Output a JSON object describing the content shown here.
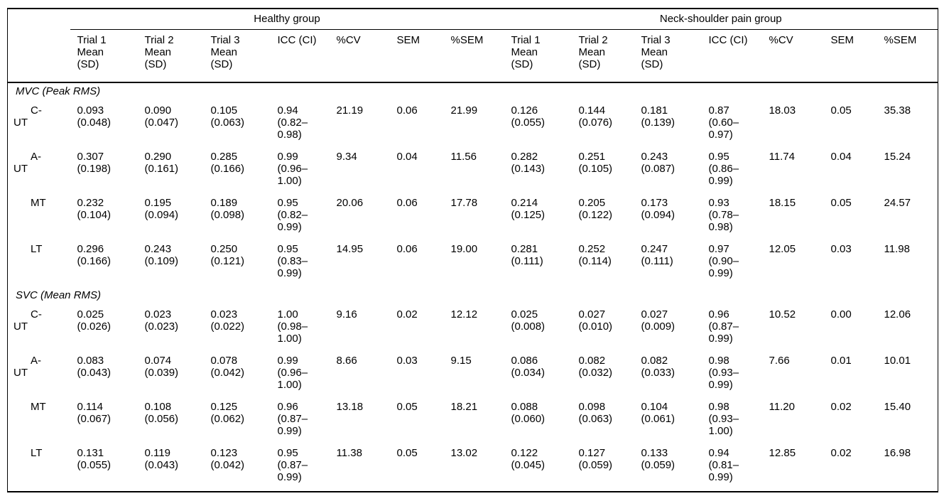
{
  "page": {
    "background_color": "#ffffff",
    "text_color": "#000000",
    "rule_color": "#000000"
  },
  "table": {
    "group_headers": [
      {
        "label": "Healthy group"
      },
      {
        "label": "Neck-shoulder pain group"
      }
    ],
    "column_headers": [
      [
        "Trial 1",
        "Mean",
        "(SD)"
      ],
      [
        "Trial 2",
        "Mean",
        "(SD)"
      ],
      [
        "Trial 3",
        "Mean",
        "(SD)"
      ],
      [
        "ICC (CI)"
      ],
      [
        "%CV"
      ],
      [
        "SEM"
      ],
      [
        "%SEM"
      ]
    ],
    "sections": [
      {
        "title": "MVC (Peak RMS)",
        "rows": [
          {
            "label_lines": [
              "C-",
              "UT"
            ],
            "healthy": {
              "trial1": [
                "0.093",
                "(0.048)"
              ],
              "trial2": [
                "0.090",
                "(0.047)"
              ],
              "trial3": [
                "0.105",
                "(0.063)"
              ],
              "icc": [
                "0.94",
                "(0.82–",
                "0.98)"
              ],
              "cv": "21.19",
              "sem": "0.06",
              "psem": "21.99"
            },
            "pain": {
              "trial1": [
                "0.126",
                "(0.055)"
              ],
              "trial2": [
                "0.144",
                "(0.076)"
              ],
              "trial3": [
                "0.181",
                "(0.139)"
              ],
              "icc": [
                "0.87",
                "(0.60–",
                "0.97)"
              ],
              "cv": "18.03",
              "sem": "0.05",
              "psem": "35.38"
            }
          },
          {
            "label_lines": [
              "A-",
              "UT"
            ],
            "healthy": {
              "trial1": [
                "0.307",
                "(0.198)"
              ],
              "trial2": [
                "0.290",
                "(0.161)"
              ],
              "trial3": [
                "0.285",
                "(0.166)"
              ],
              "icc": [
                "0.99",
                "(0.96–",
                "1.00)"
              ],
              "cv": "9.34",
              "sem": "0.04",
              "psem": "11.56"
            },
            "pain": {
              "trial1": [
                "0.282",
                "(0.143)"
              ],
              "trial2": [
                "0.251",
                "(0.105)"
              ],
              "trial3": [
                "0.243",
                "(0.087)"
              ],
              "icc": [
                "0.95",
                "(0.86–",
                "0.99)"
              ],
              "cv": "11.74",
              "sem": "0.04",
              "psem": "15.24"
            }
          },
          {
            "label_lines": [
              "MT"
            ],
            "healthy": {
              "trial1": [
                "0.232",
                "(0.104)"
              ],
              "trial2": [
                "0.195",
                "(0.094)"
              ],
              "trial3": [
                "0.189",
                "(0.098)"
              ],
              "icc": [
                "0.95",
                "(0.82–",
                "0.99)"
              ],
              "cv": "20.06",
              "sem": "0.06",
              "psem": "17.78"
            },
            "pain": {
              "trial1": [
                "0.214",
                "(0.125)"
              ],
              "trial2": [
                "0.205",
                "(0.122)"
              ],
              "trial3": [
                "0.173",
                "(0.094)"
              ],
              "icc": [
                "0.93",
                "(0.78–",
                "0.98)"
              ],
              "cv": "18.15",
              "sem": "0.05",
              "psem": "24.57"
            }
          },
          {
            "label_lines": [
              "LT"
            ],
            "healthy": {
              "trial1": [
                "0.296",
                "(0.166)"
              ],
              "trial2": [
                "0.243",
                "(0.109)"
              ],
              "trial3": [
                "0.250",
                "(0.121)"
              ],
              "icc": [
                "0.95",
                "(0.83–",
                "0.99)"
              ],
              "cv": "14.95",
              "sem": "0.06",
              "psem": "19.00"
            },
            "pain": {
              "trial1": [
                "0.281",
                "(0.111)"
              ],
              "trial2": [
                "0.252",
                "(0.114)"
              ],
              "trial3": [
                "0.247",
                "(0.111)"
              ],
              "icc": [
                "0.97",
                "(0.90–",
                "0.99)"
              ],
              "cv": "12.05",
              "sem": "0.03",
              "psem": "11.98"
            }
          }
        ]
      },
      {
        "title": "SVC (Mean RMS)",
        "rows": [
          {
            "label_lines": [
              "C-",
              "UT"
            ],
            "healthy": {
              "trial1": [
                "0.025",
                "(0.026)"
              ],
              "trial2": [
                "0.023",
                "(0.023)"
              ],
              "trial3": [
                "0.023",
                "(0.022)"
              ],
              "icc": [
                "1.00",
                "(0.98–",
                "1.00)"
              ],
              "cv": "9.16",
              "sem": "0.02",
              "psem": "12.12"
            },
            "pain": {
              "trial1": [
                "0.025",
                "(0.008)"
              ],
              "trial2": [
                "0.027",
                "(0.010)"
              ],
              "trial3": [
                "0.027",
                "(0.009)"
              ],
              "icc": [
                "0.96",
                "(0.87–",
                "0.99)"
              ],
              "cv": "10.52",
              "sem": "0.00",
              "psem": "12.06"
            }
          },
          {
            "label_lines": [
              "A-",
              "UT"
            ],
            "healthy": {
              "trial1": [
                "0.083",
                "(0.043)"
              ],
              "trial2": [
                "0.074",
                "(0.039)"
              ],
              "trial3": [
                "0.078",
                "(0.042)"
              ],
              "icc": [
                "0.99",
                "(0.96–",
                "1.00)"
              ],
              "cv": "8.66",
              "sem": "0.03",
              "psem": "9.15"
            },
            "pain": {
              "trial1": [
                "0.086",
                "(0.034)"
              ],
              "trial2": [
                "0.082",
                "(0.032)"
              ],
              "trial3": [
                "0.082",
                "(0.033)"
              ],
              "icc": [
                "0.98",
                "(0.93–",
                "0.99)"
              ],
              "cv": "7.66",
              "sem": "0.01",
              "psem": "10.01"
            }
          },
          {
            "label_lines": [
              "MT"
            ],
            "healthy": {
              "trial1": [
                "0.114",
                "(0.067)"
              ],
              "trial2": [
                "0.108",
                "(0.056)"
              ],
              "trial3": [
                "0.125",
                "(0.062)"
              ],
              "icc": [
                "0.96",
                "(0.87–",
                "0.99)"
              ],
              "cv": "13.18",
              "sem": "0.05",
              "psem": "18.21"
            },
            "pain": {
              "trial1": [
                "0.088",
                "(0.060)"
              ],
              "trial2": [
                "0.098",
                "(0.063)"
              ],
              "trial3": [
                "0.104",
                "(0.061)"
              ],
              "icc": [
                "0.98",
                "(0.93–",
                "1.00)"
              ],
              "cv": "11.20",
              "sem": "0.02",
              "psem": "15.40"
            }
          },
          {
            "label_lines": [
              "LT"
            ],
            "healthy": {
              "trial1": [
                "0.131",
                "(0.055)"
              ],
              "trial2": [
                "0.119",
                "(0.043)"
              ],
              "trial3": [
                "0.123",
                "(0.042)"
              ],
              "icc": [
                "0.95",
                "(0.87–",
                "0.99)"
              ],
              "cv": "11.38",
              "sem": "0.05",
              "psem": "13.02"
            },
            "pain": {
              "trial1": [
                "0.122",
                "(0.045)"
              ],
              "trial2": [
                "0.127",
                "(0.059)"
              ],
              "trial3": [
                "0.133",
                "(0.059)"
              ],
              "icc": [
                "0.94",
                "(0.81–",
                "0.99)"
              ],
              "cv": "12.85",
              "sem": "0.02",
              "psem": "16.98"
            }
          }
        ]
      }
    ]
  }
}
